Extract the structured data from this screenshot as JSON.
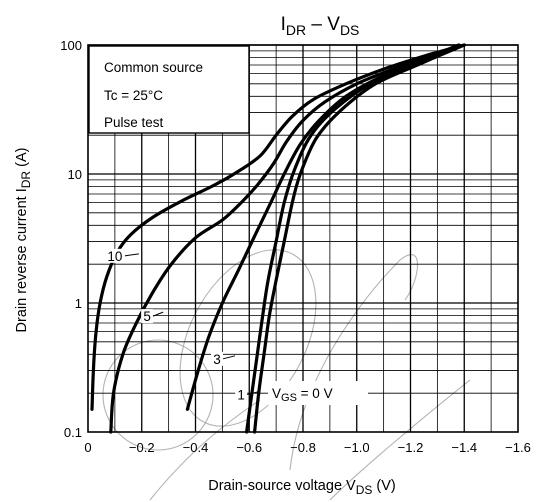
{
  "chart_data": {
    "type": "line",
    "title": {
      "main": "I",
      "main_sub": "DR",
      "sep": " – ",
      "main2": "V",
      "main2_sub": "DS"
    },
    "xlabel": {
      "text": "Drain-source voltage",
      "sym": "V",
      "sym_sub": "DS",
      "unit": "(V)"
    },
    "ylabel": {
      "text": "Drain reverse current",
      "sym": "I",
      "sym_sub": "DR",
      "unit": "(A)"
    },
    "x_ticks": [
      {
        "v": 0,
        "label": "0"
      },
      {
        "v": -0.2,
        "label": "−0.2"
      },
      {
        "v": -0.4,
        "label": "−0.4"
      },
      {
        "v": -0.6,
        "label": "−0.6"
      },
      {
        "v": -0.8,
        "label": "−0.8"
      },
      {
        "v": -1.0,
        "label": "−1.0"
      },
      {
        "v": -1.2,
        "label": "−1.2"
      },
      {
        "v": -1.4,
        "label": "−1.4"
      },
      {
        "v": -1.6,
        "label": "−1.6"
      }
    ],
    "y_ticks": [
      {
        "v": 0.1,
        "label": "0.1"
      },
      {
        "v": 1,
        "label": "1"
      },
      {
        "v": 10,
        "label": "10"
      },
      {
        "v": 100,
        "label": "100"
      }
    ],
    "xlim": [
      0,
      -1.6
    ],
    "ylim": [
      0.1,
      100
    ],
    "yscale": "log",
    "grid": true,
    "conditions": [
      "Common source",
      "Tc = 25°C",
      "Pulse test"
    ],
    "vgs_label": {
      "sym": "V",
      "sub": "GS",
      "rest": " = 0 V"
    },
    "series": [
      {
        "name": "10",
        "points": [
          [
            -0.015,
            0.15
          ],
          [
            -0.02,
            0.3
          ],
          [
            -0.03,
            0.6
          ],
          [
            -0.045,
            1.0
          ],
          [
            -0.07,
            1.6
          ],
          [
            -0.11,
            2.5
          ],
          [
            -0.16,
            3.4
          ],
          [
            -0.24,
            4.6
          ],
          [
            -0.35,
            6.2
          ],
          [
            -0.46,
            8.0
          ],
          [
            -0.55,
            10.2
          ],
          [
            -0.64,
            13.8
          ],
          [
            -0.7,
            20
          ],
          [
            -0.76,
            28
          ],
          [
            -0.84,
            38
          ],
          [
            -0.96,
            50
          ],
          [
            -1.1,
            65
          ],
          [
            -1.25,
            82
          ],
          [
            -1.4,
            100
          ]
        ]
      },
      {
        "name": "5",
        "points": [
          [
            -0.085,
            0.1
          ],
          [
            -0.095,
            0.2
          ],
          [
            -0.13,
            0.4
          ],
          [
            -0.18,
            0.7
          ],
          [
            -0.24,
            1.2
          ],
          [
            -0.31,
            2.0
          ],
          [
            -0.4,
            3.2
          ],
          [
            -0.5,
            4.4
          ],
          [
            -0.57,
            6.0
          ],
          [
            -0.63,
            8.2
          ],
          [
            -0.69,
            12
          ],
          [
            -0.74,
            18
          ],
          [
            -0.8,
            26
          ],
          [
            -0.88,
            36
          ],
          [
            -1.0,
            50
          ],
          [
            -1.16,
            68
          ],
          [
            -1.3,
            85
          ],
          [
            -1.4,
            100
          ]
        ]
      },
      {
        "name": "3",
        "points": [
          [
            -0.37,
            0.15
          ],
          [
            -0.41,
            0.3
          ],
          [
            -0.45,
            0.55
          ],
          [
            -0.5,
            1.0
          ],
          [
            -0.56,
            1.8
          ],
          [
            -0.62,
            3.3
          ],
          [
            -0.68,
            6.0
          ],
          [
            -0.73,
            10
          ],
          [
            -0.79,
            17
          ],
          [
            -0.86,
            26
          ],
          [
            -0.96,
            40
          ],
          [
            -1.1,
            58
          ],
          [
            -1.25,
            78
          ],
          [
            -1.38,
            100
          ]
        ]
      },
      {
        "name": "1",
        "points": [
          [
            -0.59,
            0.1
          ],
          [
            -0.61,
            0.2
          ],
          [
            -0.63,
            0.4
          ],
          [
            -0.65,
            0.8
          ],
          [
            -0.67,
            1.5
          ],
          [
            -0.7,
            3.0
          ],
          [
            -0.73,
            6.0
          ],
          [
            -0.77,
            11
          ],
          [
            -0.83,
            20
          ],
          [
            -0.92,
            32
          ],
          [
            -1.05,
            50
          ],
          [
            -1.22,
            72
          ],
          [
            -1.38,
            100
          ]
        ]
      },
      {
        "name": "0",
        "points": [
          [
            -0.62,
            0.1
          ],
          [
            -0.635,
            0.2
          ],
          [
            -0.655,
            0.4
          ],
          [
            -0.675,
            0.8
          ],
          [
            -0.7,
            1.5
          ],
          [
            -0.73,
            3.0
          ],
          [
            -0.76,
            6.0
          ],
          [
            -0.79,
            10
          ],
          [
            -0.85,
            19
          ],
          [
            -0.94,
            31
          ],
          [
            -1.07,
            50
          ],
          [
            -1.24,
            72
          ],
          [
            -1.4,
            100
          ]
        ]
      }
    ],
    "series_labels": [
      {
        "text": "10",
        "at": [
          -0.1,
          2.2
        ]
      },
      {
        "text": "5",
        "at": [
          -0.22,
          0.75
        ]
      },
      {
        "text": "3",
        "at": [
          -0.48,
          0.35
        ]
      },
      {
        "text": "1",
        "at": [
          -0.57,
          0.185
        ]
      }
    ]
  }
}
